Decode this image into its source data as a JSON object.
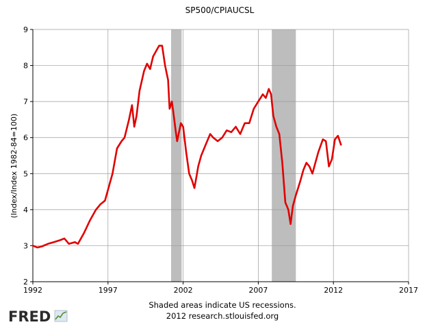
{
  "chart_data": {
    "type": "line",
    "title": "SP500/CPIAUCSL",
    "ylabel": "(Index/Index 1982-84=100)",
    "xlabel": "",
    "xlim": [
      1992,
      2017
    ],
    "ylim": [
      2,
      9
    ],
    "x_ticks": [
      1992,
      1997,
      2002,
      2007,
      2012,
      2017
    ],
    "y_ticks": [
      2,
      3,
      4,
      5,
      6,
      7,
      8,
      9
    ],
    "grid": true,
    "legend": "none",
    "recessions": [
      [
        2001.2,
        2001.9
      ],
      [
        2007.9,
        2009.5
      ]
    ],
    "series": [
      {
        "color": "#e00000",
        "x": [
          1992.0,
          1992.3,
          1992.6,
          1993.0,
          1993.4,
          1993.8,
          1994.1,
          1994.4,
          1994.8,
          1995.0,
          1995.4,
          1995.8,
          1996.2,
          1996.5,
          1996.8,
          1997.0,
          1997.3,
          1997.6,
          1997.9,
          1998.1,
          1998.4,
          1998.6,
          1998.75,
          1998.9,
          1999.1,
          1999.4,
          1999.6,
          1999.8,
          2000.0,
          2000.2,
          2000.4,
          2000.6,
          2000.8,
          2001.0,
          2001.1,
          2001.25,
          2001.35,
          2001.5,
          2001.6,
          2001.7,
          2001.85,
          2002.0,
          2002.2,
          2002.4,
          2002.6,
          2002.75,
          2002.9,
          2003.0,
          2003.2,
          2003.5,
          2003.8,
          2004.0,
          2004.3,
          2004.6,
          2004.9,
          2005.2,
          2005.5,
          2005.8,
          2006.1,
          2006.4,
          2006.7,
          2007.0,
          2007.3,
          2007.5,
          2007.7,
          2007.85,
          2008.0,
          2008.2,
          2008.4,
          2008.6,
          2008.8,
          2009.0,
          2009.15,
          2009.3,
          2009.5,
          2009.8,
          2010.0,
          2010.2,
          2010.4,
          2010.6,
          2010.8,
          2011.0,
          2011.3,
          2011.5,
          2011.7,
          2011.9,
          2012.1,
          2012.3,
          2012.5
        ],
        "y": [
          3.0,
          2.95,
          2.98,
          3.05,
          3.1,
          3.15,
          3.2,
          3.05,
          3.1,
          3.05,
          3.35,
          3.7,
          4.0,
          4.15,
          4.25,
          4.55,
          5.0,
          5.7,
          5.9,
          6.0,
          6.5,
          6.9,
          6.3,
          6.6,
          7.3,
          7.85,
          8.05,
          7.9,
          8.25,
          8.4,
          8.55,
          8.55,
          8.0,
          7.6,
          6.8,
          7.0,
          6.7,
          6.2,
          5.9,
          6.1,
          6.4,
          6.3,
          5.6,
          5.0,
          4.8,
          4.6,
          4.95,
          5.2,
          5.5,
          5.8,
          6.1,
          6.0,
          5.9,
          6.0,
          6.2,
          6.15,
          6.3,
          6.1,
          6.4,
          6.4,
          6.8,
          7.0,
          7.2,
          7.1,
          7.35,
          7.2,
          6.6,
          6.3,
          6.1,
          5.3,
          4.2,
          4.0,
          3.6,
          4.1,
          4.4,
          4.8,
          5.1,
          5.3,
          5.2,
          5.0,
          5.3,
          5.6,
          5.95,
          5.9,
          5.2,
          5.4,
          5.95,
          6.05,
          5.8
        ]
      }
    ]
  },
  "footer": {
    "note_line1": "Shaded areas indicate US recessions.",
    "note_line2": "2012 research.stlouisfed.org",
    "logo_text": "FRED"
  }
}
